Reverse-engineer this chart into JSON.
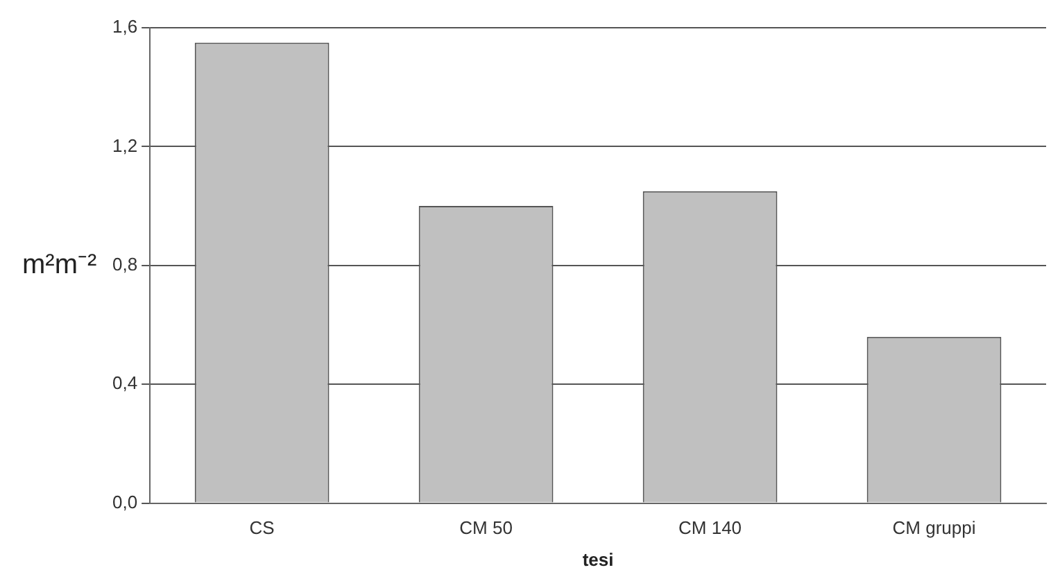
{
  "chart_data": {
    "type": "bar",
    "xlabel": "tesi",
    "ylabel": "m²m⁻²",
    "categories": [
      "CS",
      "CM 50",
      "CM 140",
      "CM gruppi"
    ],
    "values": [
      1.55,
      1.0,
      1.05,
      0.56
    ],
    "color": "#c0c0c0",
    "ylim": [
      0,
      1.6
    ],
    "yticks": [
      {
        "value": 0,
        "label": "0,0"
      },
      {
        "value": 0.4,
        "label": "0,4"
      },
      {
        "value": 0.8,
        "label": "0,8"
      },
      {
        "value": 1.2,
        "label": "1,2"
      },
      {
        "value": 1.6,
        "label": "1,6"
      }
    ],
    "grid": "y"
  }
}
